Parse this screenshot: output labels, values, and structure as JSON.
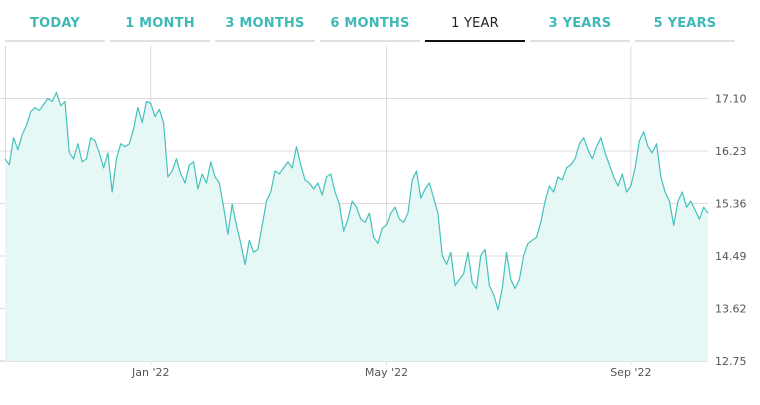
{
  "tabs": [
    {
      "label": "TODAY"
    },
    {
      "label": "1 MONTH"
    },
    {
      "label": "3 MONTHS"
    },
    {
      "label": "6 MONTHS"
    },
    {
      "label": "1 YEAR"
    },
    {
      "label": "3 YEARS"
    },
    {
      "label": "5 YEARS"
    }
  ],
  "active_tab": "1 YEAR",
  "colors": {
    "accent": "#3fb9b5",
    "line": "#45c1bb",
    "fill": "#e6f8f6",
    "grid": "#dcdcdc"
  },
  "chart_data": {
    "type": "area",
    "title": "",
    "xlabel": "",
    "ylabel": "",
    "grid": true,
    "ylim": [
      12.75,
      17.97
    ],
    "y_ticks": [
      17.1,
      16.23,
      15.36,
      14.49,
      13.62,
      12.75
    ],
    "x_ticks": [
      {
        "label": "Jan '22",
        "index": 34
      },
      {
        "label": "May '22",
        "index": 89
      },
      {
        "label": "Sep '22",
        "index": 146
      }
    ],
    "series": [
      {
        "values": [
          16.1,
          16.0,
          16.45,
          16.25,
          16.5,
          16.65,
          16.88,
          16.95,
          16.9,
          17.0,
          17.1,
          17.05,
          17.2,
          16.98,
          17.05,
          16.2,
          16.1,
          16.35,
          16.05,
          16.1,
          16.45,
          16.4,
          16.2,
          15.95,
          16.2,
          15.55,
          16.1,
          16.35,
          16.3,
          16.35,
          16.6,
          16.95,
          16.7,
          17.05,
          17.02,
          16.8,
          16.92,
          16.7,
          15.8,
          15.9,
          16.1,
          15.85,
          15.7,
          16.0,
          16.05,
          15.6,
          15.85,
          15.7,
          16.05,
          15.8,
          15.7,
          15.3,
          14.85,
          15.35,
          15.0,
          14.7,
          14.35,
          14.75,
          14.55,
          14.6,
          15.0,
          15.4,
          15.55,
          15.9,
          15.85,
          15.95,
          16.05,
          15.95,
          16.3,
          16.0,
          15.75,
          15.7,
          15.6,
          15.7,
          15.5,
          15.8,
          15.85,
          15.55,
          15.35,
          14.9,
          15.1,
          15.4,
          15.3,
          15.1,
          15.05,
          15.2,
          14.8,
          14.7,
          14.95,
          15.0,
          15.2,
          15.3,
          15.1,
          15.05,
          15.2,
          15.75,
          15.9,
          15.45,
          15.6,
          15.7,
          15.45,
          15.2,
          14.5,
          14.35,
          14.55,
          14.0,
          14.1,
          14.2,
          14.55,
          14.05,
          13.95,
          14.5,
          14.6,
          14.0,
          13.85,
          13.6,
          13.95,
          14.55,
          14.1,
          13.95,
          14.1,
          14.5,
          14.7,
          14.75,
          14.8,
          15.05,
          15.4,
          15.65,
          15.55,
          15.8,
          15.75,
          15.95,
          16.0,
          16.1,
          16.35,
          16.45,
          16.25,
          16.1,
          16.3,
          16.45,
          16.2,
          16.0,
          15.8,
          15.65,
          15.85,
          15.55,
          15.65,
          15.95,
          16.4,
          16.55,
          16.3,
          16.2,
          16.35,
          15.8,
          15.55,
          15.4,
          15.0,
          15.4,
          15.55,
          15.3,
          15.4,
          15.25,
          15.1,
          15.3,
          15.2
        ]
      }
    ]
  }
}
